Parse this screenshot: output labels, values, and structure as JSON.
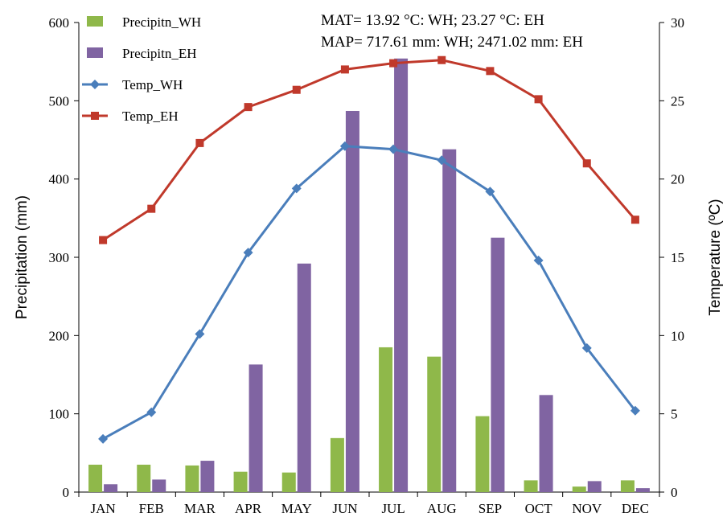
{
  "chart_data": {
    "type": "bar-line",
    "categories": [
      "JAN",
      "FEB",
      "MAR",
      "APR",
      "MAY",
      "JUN",
      "JUL",
      "AUG",
      "SEP",
      "OCT",
      "NOV",
      "DEC"
    ],
    "bar_series": [
      {
        "name": "Precipitn_WH",
        "color": "#8fb84a",
        "values": [
          35,
          35,
          34,
          26,
          25,
          69,
          185,
          173,
          97,
          15,
          7,
          15
        ]
      },
      {
        "name": "Precipitn_EH",
        "color": "#8064a2",
        "values": [
          10,
          16,
          40,
          163,
          292,
          487,
          554,
          438,
          325,
          124,
          14,
          5
        ]
      }
    ],
    "line_series": [
      {
        "name": "Temp_WH",
        "color": "#4a7ebb",
        "marker": "diamond",
        "values": [
          3.4,
          5.1,
          10.1,
          15.3,
          19.4,
          22.1,
          21.9,
          21.2,
          19.2,
          14.8,
          9.2,
          5.2
        ]
      },
      {
        "name": "Temp_EH",
        "color": "#c0392b",
        "marker": "square",
        "values": [
          16.1,
          18.1,
          22.3,
          24.6,
          25.7,
          27.0,
          27.4,
          27.6,
          26.9,
          25.1,
          21.0,
          17.4
        ]
      }
    ],
    "ylabel_left": "Precipitation (mm)",
    "ylabel_right": "Temperature (ºC)",
    "ylim_left": [
      0,
      600
    ],
    "ylim_right": [
      0,
      30
    ],
    "yticks_left": [
      "0",
      "100",
      "200",
      "300",
      "400",
      "500",
      "600"
    ],
    "yticks_right": [
      "0",
      "5",
      "10",
      "15",
      "20",
      "25",
      "30"
    ],
    "annotations": [
      "MAT= 13.92 °C: WH; 23.27 °C: EH",
      "MAP= 717.61 mm: WH; 2471.02 mm: EH"
    ],
    "legend_position": "top-left",
    "grid": false
  }
}
